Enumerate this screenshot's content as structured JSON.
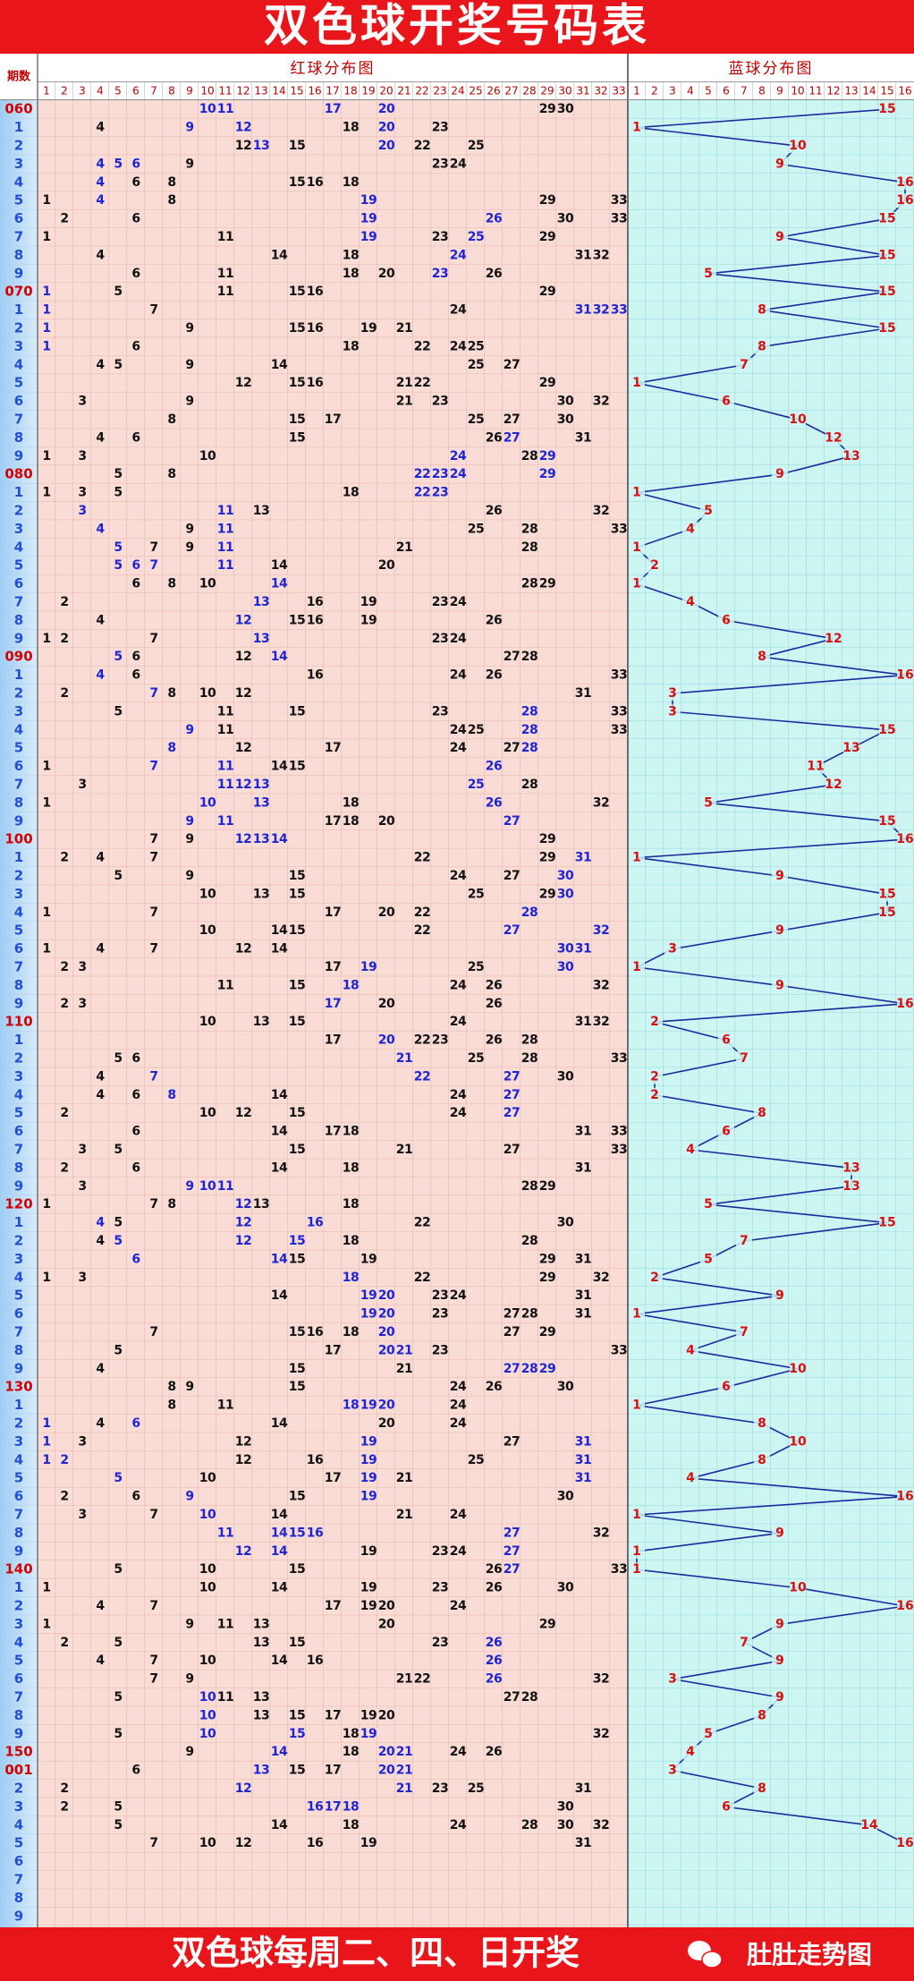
{
  "title": "双色球开奖号码表",
  "header": {
    "period_label": "期数",
    "red_title": "红球分布图",
    "blue_title": "蓝球分布图",
    "red_numbers": [
      1,
      2,
      3,
      4,
      5,
      6,
      7,
      8,
      9,
      10,
      11,
      12,
      13,
      14,
      15,
      16,
      17,
      18,
      19,
      20,
      21,
      22,
      23,
      24,
      25,
      26,
      27,
      28,
      29,
      30,
      31,
      32,
      33
    ],
    "blue_numbers": [
      1,
      2,
      3,
      4,
      5,
      6,
      7,
      8,
      9,
      10,
      11,
      12,
      13,
      14,
      15,
      16
    ]
  },
  "rows": [
    {
      "period": "060",
      "red": [
        10,
        11,
        17,
        20,
        29,
        30
      ],
      "hl": [
        10,
        11,
        17,
        20
      ],
      "blue": 15
    },
    {
      "period": "1",
      "red": [
        4,
        9,
        12,
        18,
        20,
        23
      ],
      "hl": [
        9,
        12,
        20
      ],
      "blue": 1
    },
    {
      "period": "2",
      "red": [
        12,
        13,
        15,
        20,
        22,
        25
      ],
      "hl": [
        13,
        20
      ],
      "blue": 10
    },
    {
      "period": "3",
      "red": [
        4,
        5,
        6,
        9,
        23,
        24
      ],
      "hl": [
        4,
        5,
        6
      ],
      "blue": 9
    },
    {
      "period": "4",
      "red": [
        4,
        6,
        8,
        15,
        16,
        18
      ],
      "hl": [
        4
      ],
      "blue": 16
    },
    {
      "period": "5",
      "red": [
        1,
        4,
        8,
        19,
        29,
        33
      ],
      "hl": [
        4,
        19
      ],
      "blue": 16
    },
    {
      "period": "6",
      "red": [
        2,
        6,
        19,
        26,
        30,
        33
      ],
      "hl": [
        19,
        26
      ],
      "blue": 15
    },
    {
      "period": "7",
      "red": [
        1,
        11,
        19,
        23,
        25,
        29
      ],
      "hl": [
        19,
        25
      ],
      "blue": 9
    },
    {
      "period": "8",
      "red": [
        4,
        14,
        18,
        24,
        31,
        32
      ],
      "hl": [
        24
      ],
      "blue": 15
    },
    {
      "period": "9",
      "red": [
        6,
        11,
        18,
        20,
        23,
        26
      ],
      "hl": [
        23
      ],
      "blue": 5
    },
    {
      "period": "070",
      "red": [
        1,
        5,
        11,
        15,
        16,
        29
      ],
      "hl": [
        1
      ],
      "blue": 15
    },
    {
      "period": "1",
      "red": [
        1,
        7,
        24,
        31,
        32,
        33
      ],
      "hl": [
        1,
        31,
        32,
        33
      ],
      "blue": 8
    },
    {
      "period": "2",
      "red": [
        1,
        9,
        15,
        16,
        19,
        21
      ],
      "hl": [
        1
      ],
      "blue": 15
    },
    {
      "period": "3",
      "red": [
        1,
        6,
        18,
        22,
        24,
        25
      ],
      "hl": [
        1
      ],
      "blue": 8
    },
    {
      "period": "4",
      "red": [
        4,
        5,
        9,
        14,
        25,
        27
      ],
      "blue": 7
    },
    {
      "period": "5",
      "red": [
        12,
        15,
        16,
        21,
        22,
        29
      ],
      "blue": 1
    },
    {
      "period": "6",
      "red": [
        3,
        9,
        21,
        23,
        30,
        32
      ],
      "blue": 6
    },
    {
      "period": "7",
      "red": [
        8,
        15,
        17,
        25,
        27,
        30
      ],
      "blue": 10
    },
    {
      "period": "8",
      "red": [
        4,
        6,
        15,
        26,
        27,
        31
      ],
      "hl": [
        27
      ],
      "blue": 12
    },
    {
      "period": "9",
      "red": [
        1,
        3,
        10,
        24,
        28,
        29
      ],
      "hl": [
        24,
        29
      ],
      "blue": 13
    },
    {
      "period": "080",
      "red": [
        5,
        8,
        22,
        23,
        24,
        29
      ],
      "hl": [
        22,
        23,
        24,
        29
      ],
      "blue": 9
    },
    {
      "period": "1",
      "red": [
        1,
        3,
        5,
        18,
        22,
        23
      ],
      "hl": [
        22,
        23
      ],
      "blue": 1
    },
    {
      "period": "2",
      "red": [
        3,
        11,
        13,
        26,
        32
      ],
      "hl": [
        3,
        11
      ],
      "blue": 5
    },
    {
      "period": "3",
      "red": [
        4,
        9,
        11,
        25,
        28,
        33
      ],
      "hl": [
        4,
        11
      ],
      "blue": 4
    },
    {
      "period": "4",
      "red": [
        5,
        7,
        9,
        11,
        21,
        28
      ],
      "hl": [
        5,
        11
      ],
      "blue": 1
    },
    {
      "period": "5",
      "red": [
        5,
        6,
        7,
        11,
        14,
        20
      ],
      "hl": [
        5,
        6,
        7,
        11
      ],
      "blue": 2
    },
    {
      "period": "6",
      "red": [
        6,
        8,
        10,
        14,
        28,
        29
      ],
      "hl": [
        14
      ],
      "blue": 1
    },
    {
      "period": "7",
      "red": [
        2,
        13,
        16,
        19,
        23,
        24
      ],
      "hl": [
        13
      ],
      "blue": 4
    },
    {
      "period": "8",
      "red": [
        4,
        12,
        15,
        16,
        19,
        26
      ],
      "hl": [
        12
      ],
      "blue": 6
    },
    {
      "period": "9",
      "red": [
        1,
        2,
        7,
        13,
        23,
        24
      ],
      "hl": [
        13
      ],
      "blue": 12
    },
    {
      "period": "090",
      "red": [
        5,
        6,
        12,
        14,
        27,
        28
      ],
      "hl": [
        5,
        14
      ],
      "blue": 8
    },
    {
      "period": "1",
      "red": [
        4,
        6,
        16,
        24,
        26,
        33
      ],
      "hl": [
        4
      ],
      "blue": 16
    },
    {
      "period": "2",
      "red": [
        2,
        7,
        8,
        10,
        12,
        31
      ],
      "hl": [
        7
      ],
      "blue": 3
    },
    {
      "period": "3",
      "red": [
        5,
        11,
        15,
        23,
        28,
        33
      ],
      "hl": [
        28
      ],
      "blue": 3
    },
    {
      "period": "4",
      "red": [
        9,
        11,
        24,
        25,
        28,
        33
      ],
      "hl": [
        9,
        28
      ],
      "blue": 15
    },
    {
      "period": "5",
      "red": [
        8,
        12,
        17,
        24,
        27,
        28
      ],
      "hl": [
        8,
        28
      ],
      "blue": 13
    },
    {
      "period": "6",
      "red": [
        1,
        7,
        11,
        14,
        15,
        26
      ],
      "hl": [
        7,
        11,
        26
      ],
      "blue": 11
    },
    {
      "period": "7",
      "red": [
        3,
        11,
        12,
        13,
        25,
        28
      ],
      "hl": [
        11,
        12,
        13,
        25
      ],
      "blue": 12
    },
    {
      "period": "8",
      "red": [
        1,
        10,
        13,
        18,
        26,
        32
      ],
      "hl": [
        10,
        13,
        26
      ],
      "blue": 5
    },
    {
      "period": "9",
      "red": [
        9,
        11,
        17,
        18,
        20,
        27
      ],
      "hl": [
        9,
        11,
        27
      ],
      "blue": 15
    },
    {
      "period": "100",
      "red": [
        7,
        9,
        12,
        13,
        14,
        29
      ],
      "hl": [
        12,
        13,
        14
      ],
      "blue": 16
    },
    {
      "period": "1",
      "red": [
        2,
        4,
        7,
        22,
        29,
        31
      ],
      "hl": [
        31
      ],
      "blue": 1
    },
    {
      "period": "2",
      "red": [
        5,
        9,
        15,
        24,
        27,
        30
      ],
      "hl": [
        30
      ],
      "blue": 9
    },
    {
      "period": "3",
      "red": [
        10,
        13,
        15,
        25,
        29,
        30
      ],
      "hl": [
        30
      ],
      "blue": 15
    },
    {
      "period": "4",
      "red": [
        1,
        7,
        17,
        20,
        22,
        28
      ],
      "hl": [
        28
      ],
      "blue": 15
    },
    {
      "period": "5",
      "red": [
        10,
        14,
        15,
        22,
        27,
        32
      ],
      "hl": [
        27,
        32
      ],
      "blue": 9
    },
    {
      "period": "6",
      "red": [
        1,
        4,
        7,
        12,
        14,
        30,
        31
      ],
      "hl": [
        30,
        31
      ],
      "blue": 3
    },
    {
      "period": "7",
      "red": [
        2,
        3,
        17,
        19,
        25,
        30
      ],
      "hl": [
        19,
        30
      ],
      "blue": 1
    },
    {
      "period": "8",
      "red": [
        11,
        15,
        18,
        24,
        26,
        32
      ],
      "hl": [
        18
      ],
      "blue": 9
    },
    {
      "period": "9",
      "red": [
        2,
        3,
        17,
        20,
        26
      ],
      "hl": [
        17
      ],
      "blue": 16
    },
    {
      "period": "110",
      "red": [
        10,
        13,
        15,
        24,
        31,
        32
      ],
      "blue": 2
    },
    {
      "period": "1",
      "red": [
        17,
        20,
        22,
        23,
        26,
        28
      ],
      "hl": [
        20
      ],
      "blue": 6
    },
    {
      "period": "2",
      "red": [
        5,
        6,
        21,
        25,
        28,
        33
      ],
      "hl": [
        21
      ],
      "blue": 7
    },
    {
      "period": "3",
      "red": [
        4,
        7,
        22,
        27,
        30
      ],
      "hl": [
        7,
        22,
        27
      ],
      "blue": 2
    },
    {
      "period": "4",
      "red": [
        4,
        6,
        8,
        14,
        24,
        27
      ],
      "hl": [
        8,
        27
      ],
      "blue": 2
    },
    {
      "period": "5",
      "red": [
        2,
        10,
        12,
        15,
        24,
        27
      ],
      "hl": [
        27
      ],
      "blue": 8
    },
    {
      "period": "6",
      "red": [
        6,
        14,
        17,
        18,
        31,
        33
      ],
      "blue": 6
    },
    {
      "period": "7",
      "red": [
        3,
        5,
        15,
        21,
        27,
        33
      ],
      "blue": 4
    },
    {
      "period": "8",
      "red": [
        2,
        6,
        14,
        18,
        31
      ],
      "blue": 13
    },
    {
      "period": "9",
      "red": [
        3,
        9,
        10,
        11,
        28,
        29
      ],
      "hl": [
        9,
        10,
        11
      ],
      "blue": 13
    },
    {
      "period": "120",
      "red": [
        1,
        7,
        8,
        12,
        13,
        18
      ],
      "hl": [
        12
      ],
      "blue": 5
    },
    {
      "period": "1",
      "red": [
        4,
        5,
        12,
        16,
        22,
        30
      ],
      "hl": [
        4,
        12,
        16
      ],
      "blue": 15
    },
    {
      "period": "2",
      "red": [
        4,
        5,
        12,
        15,
        18,
        28
      ],
      "hl": [
        5,
        12,
        15
      ],
      "blue": 7
    },
    {
      "period": "3",
      "red": [
        6,
        14,
        15,
        19,
        29,
        31
      ],
      "hl": [
        6,
        14
      ],
      "blue": 5
    },
    {
      "period": "4",
      "red": [
        1,
        3,
        18,
        22,
        29,
        32
      ],
      "hl": [
        18
      ],
      "blue": 2
    },
    {
      "period": "5",
      "red": [
        14,
        19,
        20,
        23,
        24,
        31
      ],
      "hl": [
        19,
        20
      ],
      "blue": 9
    },
    {
      "period": "6",
      "red": [
        19,
        20,
        23,
        27,
        28,
        31
      ],
      "hl": [
        19,
        20
      ],
      "blue": 1
    },
    {
      "period": "7",
      "red": [
        7,
        15,
        16,
        18,
        20,
        27,
        29
      ],
      "hl": [
        20
      ],
      "blue": 7
    },
    {
      "period": "8",
      "red": [
        5,
        17,
        20,
        21,
        23,
        33
      ],
      "hl": [
        20,
        21
      ],
      "blue": 4
    },
    {
      "period": "9",
      "red": [
        4,
        15,
        21,
        27,
        28,
        29
      ],
      "hl": [
        27,
        28,
        29
      ],
      "blue": 10
    },
    {
      "period": "130",
      "red": [
        8,
        9,
        15,
        24,
        26,
        30
      ],
      "blue": 6
    },
    {
      "period": "1",
      "red": [
        8,
        11,
        18,
        19,
        20,
        24
      ],
      "hl": [
        18,
        19,
        20
      ],
      "blue": 1
    },
    {
      "period": "2",
      "red": [
        1,
        4,
        6,
        14,
        20,
        24
      ],
      "hl": [
        1,
        6
      ],
      "blue": 8
    },
    {
      "period": "3",
      "red": [
        1,
        3,
        12,
        19,
        27,
        31
      ],
      "hl": [
        1,
        19,
        31
      ],
      "blue": 10
    },
    {
      "period": "4",
      "red": [
        1,
        2,
        12,
        16,
        19,
        25,
        31
      ],
      "hl": [
        1,
        2,
        19,
        31
      ],
      "blue": 8
    },
    {
      "period": "5",
      "red": [
        5,
        10,
        17,
        19,
        21,
        31
      ],
      "hl": [
        5,
        19,
        31
      ],
      "blue": 4
    },
    {
      "period": "6",
      "red": [
        2,
        6,
        9,
        15,
        19,
        30
      ],
      "hl": [
        9,
        19
      ],
      "blue": 16
    },
    {
      "period": "7",
      "red": [
        3,
        7,
        10,
        14,
        21,
        24
      ],
      "hl": [
        10
      ],
      "blue": 1
    },
    {
      "period": "8",
      "red": [
        11,
        14,
        15,
        16,
        27,
        32
      ],
      "hl": [
        11,
        14,
        15,
        16,
        27
      ],
      "blue": 9
    },
    {
      "period": "9",
      "red": [
        12,
        14,
        19,
        23,
        24,
        27
      ],
      "hl": [
        12,
        14,
        27
      ],
      "blue": 1
    },
    {
      "period": "140",
      "red": [
        5,
        10,
        15,
        26,
        27,
        33
      ],
      "hl": [
        27
      ],
      "blue": 1
    },
    {
      "period": "1",
      "red": [
        1,
        10,
        14,
        19,
        23,
        26,
        30
      ],
      "blue": 10
    },
    {
      "period": "2",
      "red": [
        4,
        7,
        17,
        19,
        20,
        24
      ],
      "blue": 16
    },
    {
      "period": "3",
      "red": [
        1,
        9,
        11,
        13,
        20,
        29
      ],
      "blue": 9
    },
    {
      "period": "4",
      "red": [
        2,
        5,
        13,
        15,
        23,
        26
      ],
      "hl": [
        26
      ],
      "blue": 7
    },
    {
      "period": "5",
      "red": [
        4,
        7,
        10,
        14,
        16,
        26
      ],
      "hl": [
        26
      ],
      "blue": 9
    },
    {
      "period": "6",
      "red": [
        7,
        9,
        21,
        22,
        26,
        32
      ],
      "hl": [
        26
      ],
      "blue": 3
    },
    {
      "period": "7",
      "red": [
        5,
        10,
        11,
        13,
        27,
        28
      ],
      "hl": [
        10
      ],
      "blue": 9
    },
    {
      "period": "8",
      "red": [
        10,
        13,
        15,
        17,
        19,
        20
      ],
      "hl": [
        10
      ],
      "blue": 8
    },
    {
      "period": "9",
      "red": [
        5,
        10,
        15,
        18,
        19,
        32
      ],
      "hl": [
        10,
        15,
        19
      ],
      "blue": 5
    },
    {
      "period": "150",
      "red": [
        9,
        14,
        18,
        20,
        21,
        24,
        26
      ],
      "hl": [
        14,
        20,
        21
      ],
      "blue": 4
    },
    {
      "period": "001",
      "red": [
        6,
        13,
        15,
        17,
        20,
        21
      ],
      "hl": [
        13,
        20,
        21
      ],
      "blue": 3
    },
    {
      "period": "2",
      "red": [
        2,
        12,
        21,
        23,
        25,
        31
      ],
      "hl": [
        12,
        21
      ],
      "blue": 8
    },
    {
      "period": "3",
      "red": [
        2,
        5,
        16,
        17,
        18,
        30
      ],
      "hl": [
        16,
        17,
        18
      ],
      "blue": 6
    },
    {
      "period": "4",
      "red": [
        5,
        14,
        18,
        24,
        28,
        30,
        32
      ],
      "blue": 14
    },
    {
      "period": "5",
      "red": [
        7,
        10,
        12,
        16,
        19,
        31
      ],
      "blue": 16
    },
    {
      "period": "6"
    },
    {
      "period": "7"
    },
    {
      "period": "8"
    },
    {
      "period": "9"
    }
  ],
  "footer": {
    "text": "双色球每周二、四、日开奖",
    "brand": "肚肚走势图"
  }
}
